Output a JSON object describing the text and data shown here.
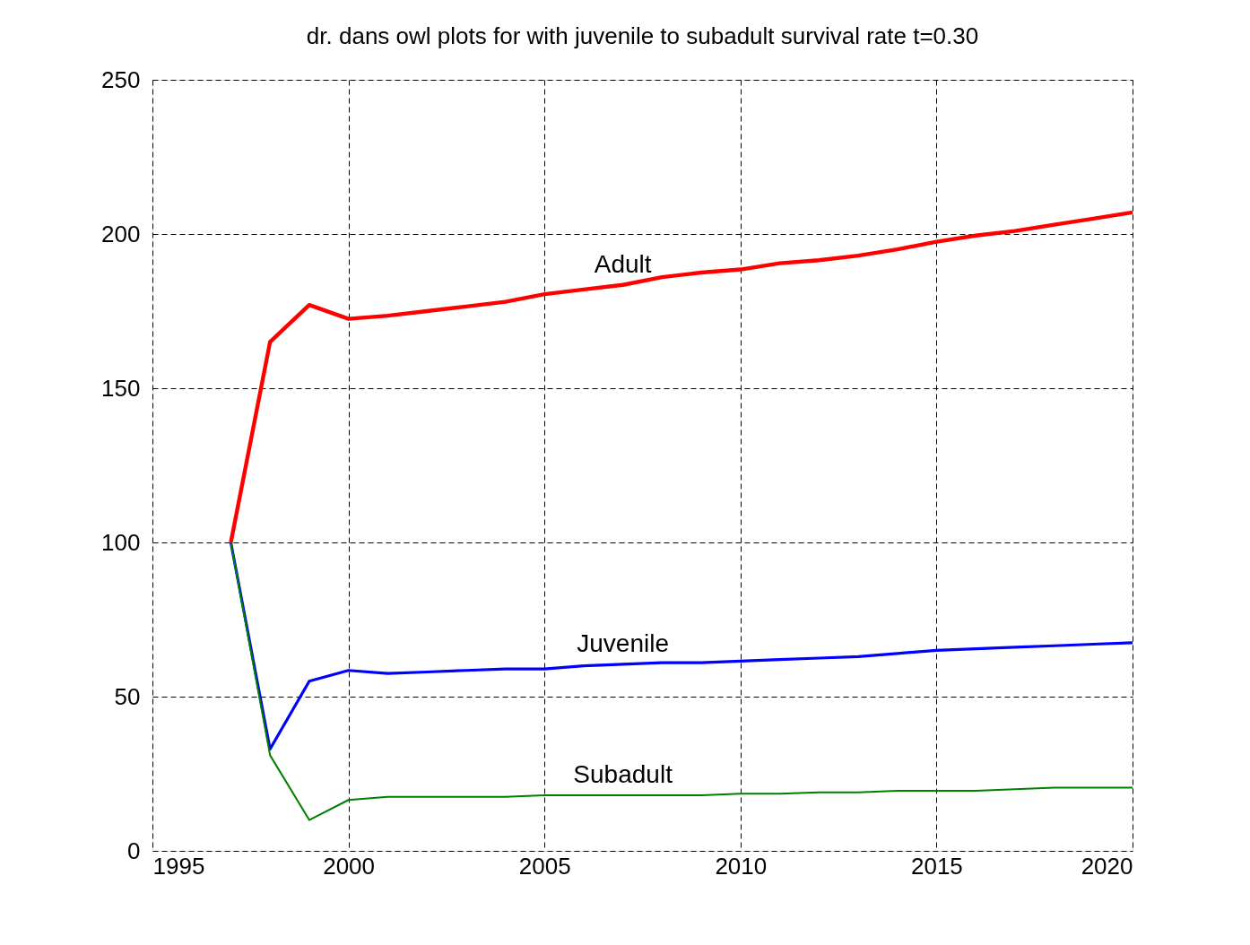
{
  "chart_data": {
    "type": "line",
    "title": "dr. dans owl plots for with juvenile to subadult survival rate t=0.30",
    "x": [
      1997,
      1998,
      1999,
      2000,
      2001,
      2002,
      2003,
      2004,
      2005,
      2006,
      2007,
      2008,
      2009,
      2010,
      2011,
      2012,
      2013,
      2014,
      2015,
      2016,
      2017,
      2018,
      2019,
      2020
    ],
    "series": [
      {
        "name": "Adult",
        "color": "#ff0000",
        "values": [
          100,
          165,
          177,
          172.5,
          173.5,
          175,
          176.5,
          178,
          180.5,
          182,
          183.5,
          186,
          187.5,
          188.5,
          190.5,
          191.5,
          193,
          195,
          197.5,
          199.5,
          201,
          203,
          205,
          207
        ]
      },
      {
        "name": "Juvenile",
        "color": "#0000ff",
        "values": [
          100,
          33,
          55,
          58.5,
          57.5,
          58,
          58.5,
          59,
          59,
          60,
          60.5,
          61,
          61,
          61.5,
          62,
          62.5,
          63,
          64,
          65,
          65.5,
          66,
          66.5,
          67,
          67.5
        ]
      },
      {
        "name": "Subadult",
        "color": "#008000",
        "values": [
          100,
          31,
          10,
          16.5,
          17.5,
          17.5,
          17.5,
          17.5,
          18,
          18,
          18,
          18,
          18,
          18.5,
          18.5,
          19,
          19,
          19.5,
          19.5,
          19.5,
          20,
          20.5,
          20.5,
          20.5
        ]
      }
    ],
    "xlim": [
      1995,
      2020
    ],
    "xticks": [
      1995,
      2000,
      2005,
      2010,
      2015,
      2020
    ],
    "ylim": [
      0,
      250
    ],
    "yticks": [
      0,
      50,
      100,
      150,
      200,
      250
    ],
    "grid": true,
    "legend": false,
    "marker": "none",
    "line_style": "solid"
  }
}
